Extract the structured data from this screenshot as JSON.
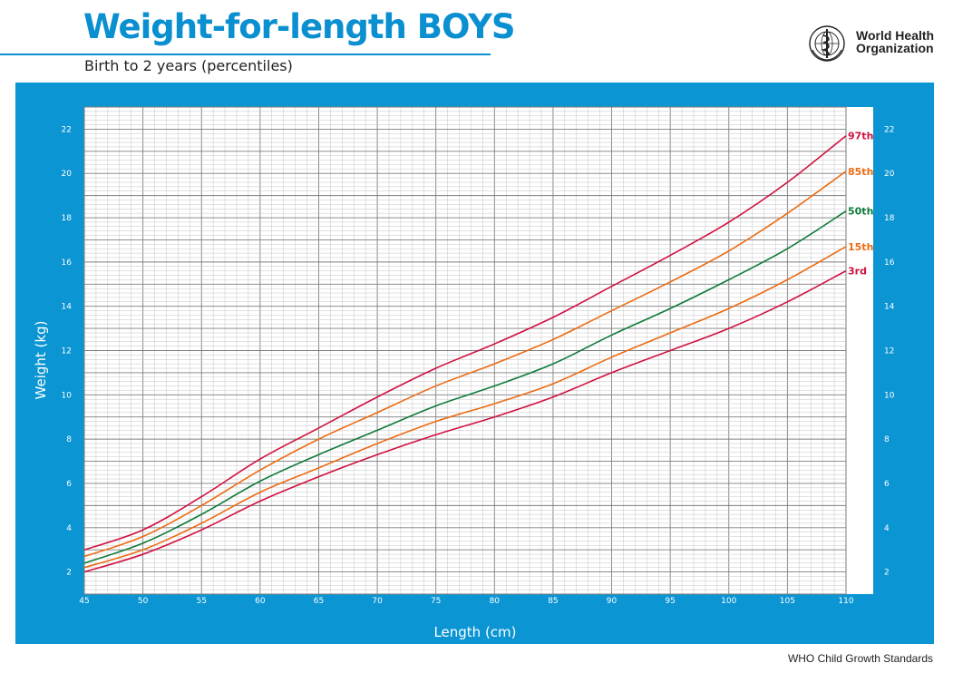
{
  "header": {
    "title": "Weight-for-length BOYS",
    "subtitle": "Birth to 2 years (percentiles)"
  },
  "org": {
    "line1": "World Health",
    "line2": "Organization",
    "logo_icon": "who-emblem-icon"
  },
  "footer": {
    "text": "WHO Child Growth Standards"
  },
  "colors": {
    "brand_blue": "#0b95d3",
    "title_blue": "#0a8fd0",
    "p3_p97": "#d0113f",
    "p15_p85": "#ec6b12",
    "p50": "#0e7a3a"
  },
  "chart_data": {
    "type": "line",
    "xlabel": "Length (cm)",
    "ylabel": "Weight (kg)",
    "xlim": [
      45,
      110
    ],
    "ylim": [
      1,
      23
    ],
    "x_ticks": [
      "45",
      "50",
      "55",
      "60",
      "65",
      "70",
      "75",
      "80",
      "85",
      "90",
      "95",
      "100",
      "105",
      "110"
    ],
    "y_ticks": [
      "2",
      "4",
      "6",
      "8",
      "10",
      "12",
      "14",
      "16",
      "18",
      "20",
      "22"
    ],
    "grid": true,
    "x": [
      45,
      50,
      55,
      60,
      65,
      70,
      75,
      80,
      85,
      90,
      95,
      100,
      105,
      110
    ],
    "series": [
      {
        "name": "97th",
        "color": "#d0113f",
        "values": [
          3.0,
          3.9,
          5.4,
          7.1,
          8.5,
          9.9,
          11.2,
          12.3,
          13.5,
          14.9,
          16.3,
          17.8,
          19.6,
          21.7
        ]
      },
      {
        "name": "85th",
        "color": "#ec6b12",
        "values": [
          2.7,
          3.6,
          5.0,
          6.6,
          8.0,
          9.2,
          10.4,
          11.4,
          12.5,
          13.8,
          15.1,
          16.5,
          18.2,
          20.1
        ]
      },
      {
        "name": "50th",
        "color": "#0e7a3a",
        "values": [
          2.4,
          3.3,
          4.6,
          6.1,
          7.3,
          8.4,
          9.5,
          10.4,
          11.4,
          12.7,
          13.9,
          15.2,
          16.6,
          18.3
        ]
      },
      {
        "name": "15th",
        "color": "#ec6b12",
        "values": [
          2.2,
          3.0,
          4.2,
          5.6,
          6.7,
          7.8,
          8.8,
          9.6,
          10.5,
          11.7,
          12.8,
          13.9,
          15.2,
          16.7
        ]
      },
      {
        "name": "3rd",
        "color": "#d0113f",
        "values": [
          2.0,
          2.8,
          3.9,
          5.2,
          6.3,
          7.3,
          8.2,
          9.0,
          9.9,
          11.0,
          12.0,
          13.0,
          14.2,
          15.6
        ]
      }
    ]
  }
}
